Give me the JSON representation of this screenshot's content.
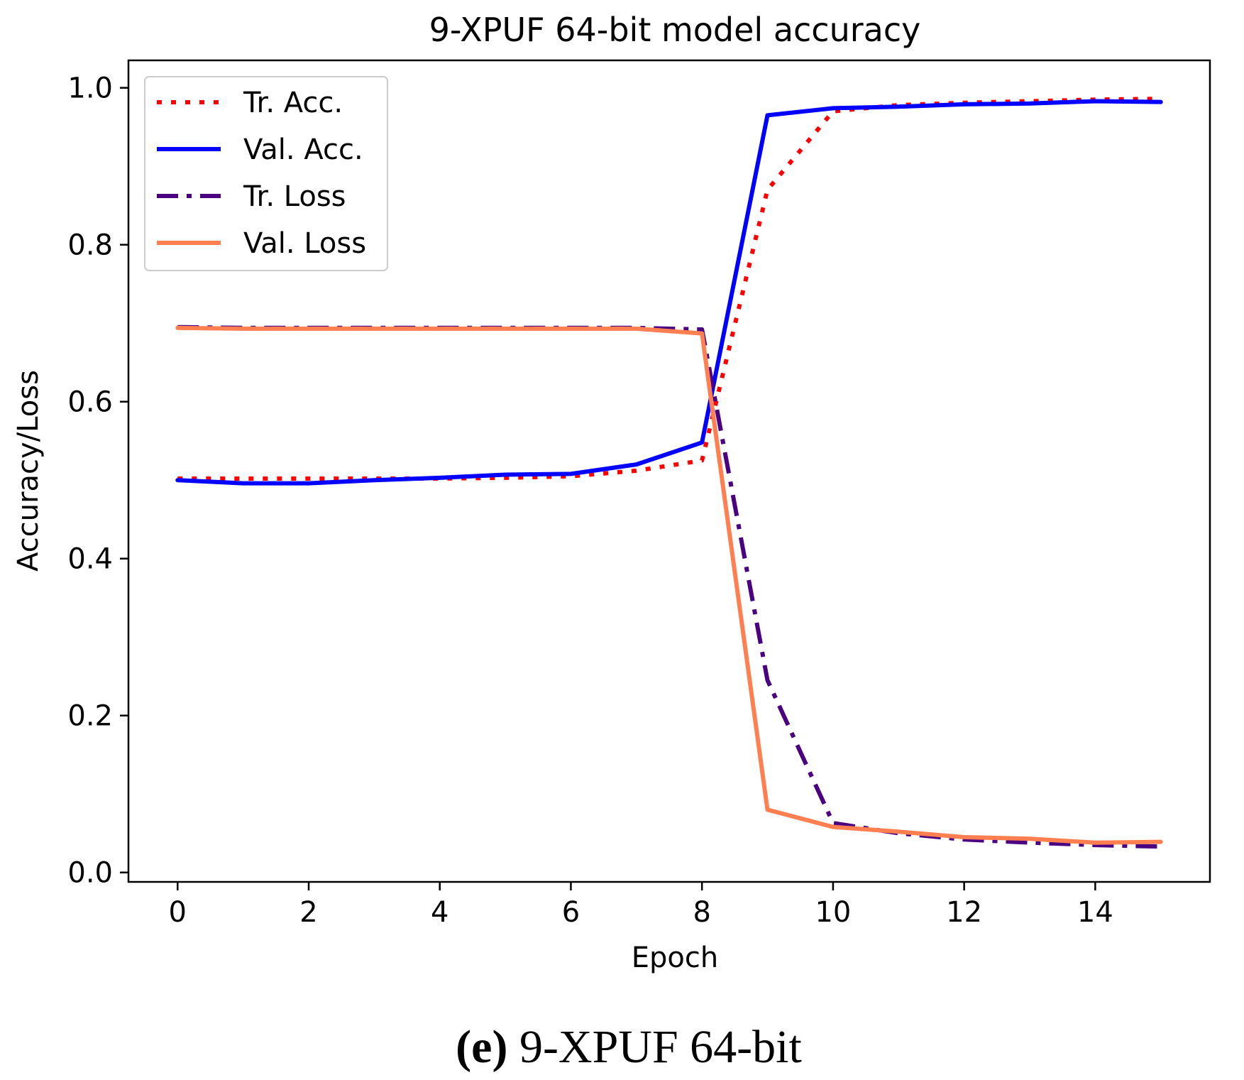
{
  "chart_data": {
    "type": "line",
    "title": "9-XPUF 64-bit model accuracy",
    "xlabel": "Epoch",
    "ylabel": "Accuracy/Loss",
    "xlim": [
      -0.75,
      15.75
    ],
    "ylim": [
      -0.012,
      1.035
    ],
    "xticks": [
      0,
      2,
      4,
      6,
      8,
      10,
      12,
      14
    ],
    "xtick_labels": [
      "0",
      "2",
      "4",
      "6",
      "8",
      "10",
      "12",
      "14"
    ],
    "yticks": [
      0.0,
      0.2,
      0.4,
      0.6,
      0.8,
      1.0
    ],
    "ytick_labels": [
      "0.0",
      "0.2",
      "0.4",
      "0.6",
      "0.8",
      "1.0"
    ],
    "grid": false,
    "legend_position": "top-left",
    "x": [
      0,
      1,
      2,
      3,
      4,
      5,
      6,
      7,
      8,
      9,
      10,
      11,
      12,
      13,
      14,
      15
    ],
    "series": [
      {
        "name": "Tr. Acc.",
        "color": "#ff0000",
        "style": "dotted",
        "values": [
          0.502,
          0.502,
          0.502,
          0.502,
          0.502,
          0.503,
          0.505,
          0.512,
          0.525,
          0.87,
          0.97,
          0.978,
          0.981,
          0.983,
          0.985,
          0.986
        ]
      },
      {
        "name": "Val. Acc.",
        "color": "#0000ff",
        "style": "solid",
        "values": [
          0.5,
          0.496,
          0.496,
          0.5,
          0.503,
          0.507,
          0.508,
          0.52,
          0.548,
          0.965,
          0.974,
          0.976,
          0.979,
          0.98,
          0.983,
          0.982
        ]
      },
      {
        "name": "Tr. Loss",
        "color": "#4b0082",
        "style": "dashdot",
        "values": [
          0.695,
          0.694,
          0.694,
          0.694,
          0.694,
          0.694,
          0.694,
          0.694,
          0.692,
          0.245,
          0.063,
          0.05,
          0.042,
          0.038,
          0.035,
          0.033
        ]
      },
      {
        "name": "Val. Loss",
        "color": "#ff7f50",
        "style": "solid",
        "values": [
          0.694,
          0.693,
          0.693,
          0.693,
          0.693,
          0.693,
          0.693,
          0.693,
          0.687,
          0.08,
          0.058,
          0.052,
          0.045,
          0.043,
          0.038,
          0.039
        ]
      }
    ]
  },
  "caption": {
    "label": "(e)",
    "text": " 9-XPUF 64-bit"
  }
}
